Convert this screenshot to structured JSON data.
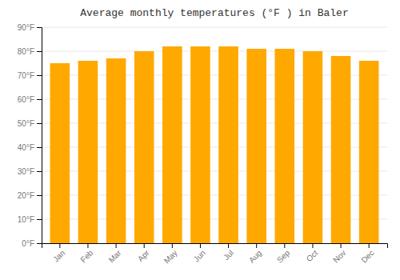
{
  "chart_data": {
    "type": "bar",
    "title": "Average monthly temperatures (°F ) in Baler",
    "categories": [
      "Jan",
      "Feb",
      "Mar",
      "Apr",
      "May",
      "Jun",
      "Jul",
      "Aug",
      "Sep",
      "Oct",
      "Nov",
      "Dec"
    ],
    "values": [
      75,
      76,
      77,
      80,
      82,
      82,
      82,
      81,
      81,
      80,
      78,
      76
    ],
    "color": "#FFA800",
    "ylim": [
      0,
      90
    ],
    "yticks": [
      {
        "value": 0,
        "label": "0°F"
      },
      {
        "value": 10,
        "label": "10°F"
      },
      {
        "value": 20,
        "label": "20°F"
      },
      {
        "value": 30,
        "label": "30°F"
      },
      {
        "value": 40,
        "label": "40°F"
      },
      {
        "value": 50,
        "label": "50°F"
      },
      {
        "value": 60,
        "label": "60°F"
      },
      {
        "value": 70,
        "label": "70°F"
      },
      {
        "value": 80,
        "label": "80°F"
      },
      {
        "value": 90,
        "label": "90°F"
      }
    ],
    "grid": true
  }
}
